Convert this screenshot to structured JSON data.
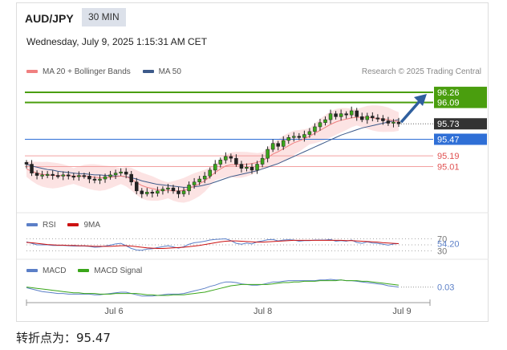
{
  "header": {
    "symbol": "AUD/JPY",
    "interval": "30 MIN",
    "datetime": "Wednesday, July 9, 2025 1:15:31 AM CET"
  },
  "legend_main": [
    {
      "label": "MA 20 + Bollinger Bands",
      "color": "#f08080"
    },
    {
      "label": "MA 50",
      "color": "#3d5a8a"
    }
  ],
  "credit": "Research © 2025 Trading Central",
  "legend_rsi": [
    {
      "label": "RSI",
      "color": "#5b7fc7"
    },
    {
      "label": "9MA",
      "color": "#cc1111"
    }
  ],
  "legend_macd": [
    {
      "label": "MACD",
      "color": "#5b7fc7"
    },
    {
      "label": "MACD Signal",
      "color": "#3aa61a"
    }
  ],
  "footer": {
    "label": "转折点为：95.47"
  },
  "colors": {
    "green": "#4a9e0e",
    "blue": "#2f6fd6",
    "red": "#e05252",
    "dark": "#333333",
    "arrow": "#2f5f9e"
  },
  "chart_data": [
    {
      "type": "candlestick",
      "panel": "price",
      "price_range": [
        94.3,
        96.45
      ],
      "x_ticks": [
        "Jul 6",
        "Jul 8",
        "Jul 9"
      ],
      "levels": [
        {
          "value": 96.26,
          "label": "96.26",
          "color": "#4a9e0e",
          "style": "filled-tag"
        },
        {
          "value": 96.09,
          "label": "96.09",
          "color": "#4a9e0e",
          "style": "filled-tag"
        },
        {
          "value": 95.73,
          "label": "95.73",
          "color": "#333333",
          "style": "current-price"
        },
        {
          "value": 95.47,
          "label": "95.47",
          "color": "#2f6fd6",
          "style": "filled-tag"
        },
        {
          "value": 95.19,
          "label": "95.19",
          "color": "#e05252",
          "style": "text"
        },
        {
          "value": 95.01,
          "label": "95.01",
          "color": "#e05252",
          "style": "text"
        }
      ],
      "close_series": [
        95.05,
        94.9,
        94.86,
        94.87,
        94.88,
        94.86,
        94.85,
        94.87,
        94.85,
        94.84,
        94.86,
        94.85,
        94.8,
        94.78,
        94.8,
        94.84,
        94.87,
        94.9,
        94.92,
        94.88,
        94.75,
        94.6,
        94.55,
        94.58,
        94.56,
        94.6,
        94.63,
        94.65,
        94.6,
        94.55,
        94.6,
        94.7,
        94.75,
        94.8,
        94.85,
        94.95,
        95.05,
        95.12,
        95.18,
        95.15,
        95.05,
        94.98,
        95.0,
        94.95,
        95.05,
        95.15,
        95.3,
        95.4,
        95.35,
        95.45,
        95.5,
        95.52,
        95.5,
        95.55,
        95.6,
        95.68,
        95.75,
        95.8,
        95.9,
        95.85,
        95.9,
        95.88,
        95.95,
        95.85,
        95.8,
        95.86,
        95.83,
        95.82,
        95.78,
        95.74,
        95.76,
        95.73
      ],
      "ma20_series": [
        94.97,
        94.93,
        94.9,
        94.88,
        94.87,
        94.86,
        94.86,
        94.86,
        94.86,
        94.85,
        94.85,
        94.85,
        94.84,
        94.83,
        94.82,
        94.82,
        94.83,
        94.84,
        94.85,
        94.84,
        94.8,
        94.74,
        94.69,
        94.66,
        94.64,
        94.62,
        94.61,
        94.61,
        94.6,
        94.6,
        94.61,
        94.64,
        94.68,
        94.72,
        94.77,
        94.84,
        94.91,
        94.97,
        95.02,
        95.04,
        95.04,
        95.04,
        95.05,
        95.06,
        95.08,
        95.11,
        95.16,
        95.22,
        95.26,
        95.31,
        95.36,
        95.41,
        95.44,
        95.48,
        95.52,
        95.57,
        95.62,
        95.67,
        95.72,
        95.76,
        95.79,
        95.81,
        95.83,
        95.84,
        95.84,
        95.84,
        95.83,
        95.82,
        95.81,
        95.8,
        95.78,
        95.77
      ],
      "ma50_series": [
        95.05,
        95.02,
        95.0,
        94.98,
        94.96,
        94.95,
        94.93,
        94.92,
        94.91,
        94.9,
        94.89,
        94.89,
        94.88,
        94.87,
        94.87,
        94.86,
        94.86,
        94.85,
        94.85,
        94.84,
        94.82,
        94.8,
        94.77,
        94.75,
        94.73,
        94.71,
        94.7,
        94.69,
        94.68,
        94.67,
        94.66,
        94.66,
        94.67,
        94.68,
        94.7,
        94.72,
        94.75,
        94.78,
        94.81,
        94.84,
        94.86,
        94.88,
        94.9,
        94.92,
        94.94,
        94.97,
        95.0,
        95.03,
        95.06,
        95.1,
        95.14,
        95.18,
        95.22,
        95.26,
        95.3,
        95.34,
        95.38,
        95.42,
        95.46,
        95.5,
        95.54,
        95.57,
        95.6,
        95.63,
        95.66,
        95.68,
        95.7,
        95.72,
        95.74,
        95.76,
        95.78,
        95.8
      ],
      "band_width": 0.22
    },
    {
      "type": "line",
      "panel": "RSI",
      "y_ticks": [
        70,
        30
      ],
      "last_value": 54.2,
      "last_label": "54.20",
      "y_range": [
        10,
        90
      ],
      "series": [
        {
          "name": "RSI",
          "values": [
            60,
            55,
            50,
            50,
            50,
            48,
            48,
            48,
            47,
            46,
            46,
            46,
            45,
            42,
            43,
            46,
            49,
            53,
            55,
            47,
            38,
            33,
            32,
            36,
            37,
            41,
            44,
            47,
            43,
            39,
            44,
            52,
            57,
            59,
            62,
            66,
            68,
            69,
            70,
            64,
            55,
            52,
            56,
            53,
            60,
            63,
            67,
            68,
            63,
            66,
            67,
            66,
            62,
            64,
            64,
            66,
            66,
            66,
            68,
            62,
            64,
            62,
            66,
            58,
            55,
            60,
            56,
            55,
            52,
            49,
            53,
            54.2
          ]
        },
        {
          "name": "9MA",
          "values": [
            58,
            57,
            55,
            53,
            51,
            50,
            49,
            49,
            48,
            48,
            47,
            47,
            46,
            45,
            45,
            45,
            45,
            46,
            47,
            47,
            46,
            44,
            42,
            40,
            39,
            38,
            38,
            39,
            40,
            41,
            42,
            44,
            46,
            48,
            51,
            54,
            57,
            60,
            62,
            63,
            63,
            62,
            61,
            60,
            59,
            59,
            60,
            61,
            62,
            63,
            64,
            65,
            65,
            65,
            65,
            65,
            65,
            65,
            65,
            65,
            65,
            64,
            64,
            63,
            62,
            61,
            60,
            59,
            57,
            56,
            55,
            54
          ]
        }
      ]
    },
    {
      "type": "line",
      "panel": "MACD",
      "last_value": 0.03,
      "last_label": "0.03",
      "y_range": [
        -0.15,
        0.2
      ],
      "series": [
        {
          "name": "MACD",
          "values": [
            0.02,
            0.0,
            -0.02,
            -0.04,
            -0.05,
            -0.06,
            -0.07,
            -0.07,
            -0.08,
            -0.08,
            -0.08,
            -0.08,
            -0.08,
            -0.09,
            -0.09,
            -0.08,
            -0.07,
            -0.06,
            -0.05,
            -0.05,
            -0.07,
            -0.09,
            -0.11,
            -0.11,
            -0.11,
            -0.1,
            -0.09,
            -0.08,
            -0.08,
            -0.08,
            -0.07,
            -0.05,
            -0.03,
            -0.01,
            0.01,
            0.04,
            0.06,
            0.09,
            0.11,
            0.11,
            0.1,
            0.08,
            0.07,
            0.06,
            0.06,
            0.07,
            0.09,
            0.11,
            0.11,
            0.12,
            0.13,
            0.13,
            0.13,
            0.13,
            0.13,
            0.13,
            0.14,
            0.14,
            0.15,
            0.14,
            0.14,
            0.13,
            0.13,
            0.12,
            0.11,
            0.1,
            0.09,
            0.08,
            0.07,
            0.05,
            0.04,
            0.03
          ]
        },
        {
          "name": "MACD Signal",
          "values": [
            0.03,
            0.02,
            0.01,
            0.0,
            -0.01,
            -0.02,
            -0.03,
            -0.04,
            -0.05,
            -0.06,
            -0.06,
            -0.07,
            -0.07,
            -0.07,
            -0.08,
            -0.08,
            -0.08,
            -0.07,
            -0.07,
            -0.07,
            -0.07,
            -0.07,
            -0.08,
            -0.09,
            -0.09,
            -0.1,
            -0.1,
            -0.1,
            -0.09,
            -0.09,
            -0.09,
            -0.08,
            -0.07,
            -0.06,
            -0.05,
            -0.03,
            -0.01,
            0.01,
            0.03,
            0.05,
            0.06,
            0.07,
            0.07,
            0.07,
            0.07,
            0.07,
            0.07,
            0.08,
            0.09,
            0.1,
            0.1,
            0.11,
            0.11,
            0.12,
            0.12,
            0.12,
            0.13,
            0.13,
            0.13,
            0.13,
            0.14,
            0.13,
            0.13,
            0.13,
            0.12,
            0.12,
            0.11,
            0.1,
            0.09,
            0.08,
            0.07,
            0.06
          ]
        }
      ]
    }
  ]
}
